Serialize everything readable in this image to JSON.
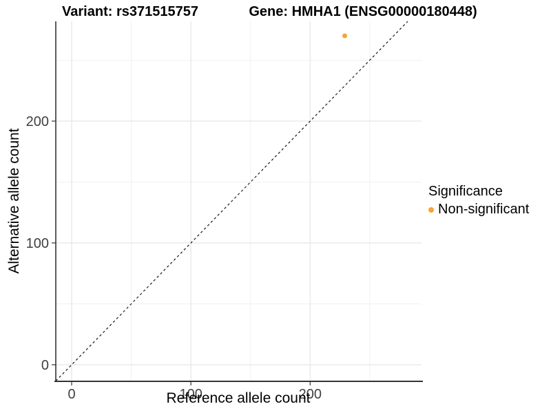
{
  "chart_data": {
    "type": "scatter",
    "title_left": "Variant: rs371515757",
    "title_right": "Gene: HMHA1 (ENSG00000180448)",
    "xlabel": "Reference allele count",
    "ylabel": "Alternative allele count",
    "xlim": [
      -13.3,
      293.4
    ],
    "ylim": [
      -13.6,
      281.9
    ],
    "x_ticks": [
      0,
      100,
      200
    ],
    "y_ticks": [
      0,
      100,
      200
    ],
    "grid_major": [
      0,
      100,
      200
    ],
    "grid_minor": [
      50,
      150,
      250
    ],
    "grid": true,
    "points": [
      {
        "x": 229,
        "y": 270,
        "series": "Non-significant"
      }
    ],
    "reference_line": {
      "type": "identity",
      "style": "dashed",
      "color": "#1a1a1a"
    },
    "legend": {
      "title": "Significance",
      "position": "right",
      "items": [
        {
          "label": "Non-significant",
          "color": "#F7A438",
          "marker": "circle"
        }
      ]
    },
    "colors": {
      "point": "#F7A438",
      "grid_major": "#E3E3E3",
      "grid_minor": "#F1F1F1",
      "axis_line": "#333333",
      "tick_mark": "#333333",
      "tick_label": "#404040",
      "background": "#FFFFFF"
    }
  }
}
